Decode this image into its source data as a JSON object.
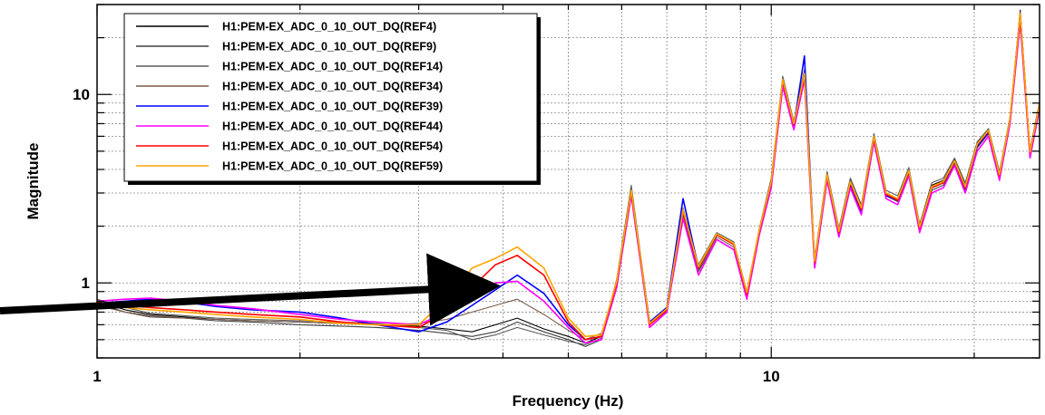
{
  "chart_data": {
    "type": "line",
    "title": "",
    "xlabel": "Frequency (Hz)",
    "ylabel": "Magnitude",
    "xscale": "log",
    "yscale": "log",
    "xlim": [
      1,
      25
    ],
    "ylim": [
      0.4,
      30
    ],
    "grid": true,
    "legend_position": "top-left",
    "x_ticks": [
      {
        "value": 1,
        "label": "1"
      },
      {
        "value": 10,
        "label": "10"
      }
    ],
    "y_ticks": [
      {
        "value": 1,
        "label": "1"
      },
      {
        "value": 10,
        "label": "10"
      }
    ],
    "x": [
      1.0,
      1.1,
      1.2,
      1.35,
      1.5,
      1.7,
      2.0,
      2.3,
      2.6,
      3.0,
      3.3,
      3.6,
      3.9,
      4.2,
      4.6,
      5.0,
      5.3,
      5.6,
      5.9,
      6.2,
      6.6,
      7.0,
      7.4,
      7.8,
      8.3,
      8.8,
      9.2,
      9.6,
      10.0,
      10.4,
      10.8,
      11.2,
      11.6,
      12.1,
      12.6,
      13.1,
      13.6,
      14.2,
      14.8,
      15.4,
      16.0,
      16.6,
      17.3,
      18.0,
      18.7,
      19.4,
      20.2,
      21.0,
      21.8,
      22.6,
      23.4,
      24.2,
      25.0
    ],
    "series": [
      {
        "name": "H1:PEM-EX_ADC_0_10_OUT_DQ(REF4)",
        "color": "#000000",
        "values": [
          0.8,
          0.72,
          0.68,
          0.66,
          0.64,
          0.63,
          0.62,
          0.61,
          0.6,
          0.59,
          0.57,
          0.55,
          0.6,
          0.65,
          0.57,
          0.52,
          0.48,
          0.52,
          1.0,
          3.2,
          0.6,
          0.72,
          2.4,
          1.2,
          1.8,
          1.6,
          0.88,
          1.9,
          3.5,
          12.0,
          7.0,
          13.0,
          1.3,
          3.8,
          1.9,
          3.5,
          2.5,
          6.0,
          3.0,
          2.8,
          4.0,
          2.0,
          3.3,
          3.5,
          4.5,
          3.3,
          5.5,
          6.5,
          3.8,
          7.5,
          28.0,
          5.0,
          9.0
        ]
      },
      {
        "name": "H1:PEM-EX_ADC_0_10_OUT_DQ(REF9)",
        "color": "#404040",
        "values": [
          0.78,
          0.7,
          0.66,
          0.65,
          0.63,
          0.62,
          0.6,
          0.59,
          0.58,
          0.56,
          0.54,
          0.52,
          0.55,
          0.62,
          0.55,
          0.5,
          0.46,
          0.5,
          0.98,
          3.0,
          0.58,
          0.7,
          2.3,
          1.15,
          1.7,
          1.5,
          0.84,
          1.8,
          3.3,
          11.5,
          6.8,
          12.5,
          1.25,
          3.6,
          1.8,
          3.3,
          2.4,
          5.8,
          2.9,
          2.7,
          3.8,
          1.9,
          3.1,
          3.3,
          4.3,
          3.1,
          5.2,
          6.2,
          3.6,
          7.2,
          26.0,
          4.8,
          8.6
        ]
      },
      {
        "name": "H1:PEM-EX_ADC_0_10_OUT_DQ(REF14)",
        "color": "#5a5a5a",
        "values": [
          0.82,
          0.74,
          0.69,
          0.67,
          0.65,
          0.64,
          0.63,
          0.62,
          0.61,
          0.58,
          0.56,
          0.5,
          0.53,
          0.58,
          0.53,
          0.49,
          0.47,
          0.51,
          1.05,
          3.3,
          0.62,
          0.74,
          2.5,
          1.25,
          1.85,
          1.65,
          0.9,
          1.95,
          3.6,
          12.5,
          7.2,
          13.5,
          1.35,
          3.9,
          1.95,
          3.6,
          2.6,
          6.2,
          3.1,
          2.9,
          4.1,
          2.05,
          3.4,
          3.6,
          4.6,
          3.4,
          5.6,
          6.6,
          3.9,
          7.6,
          27.0,
          5.1,
          9.2
        ]
      },
      {
        "name": "H1:PEM-EX_ADC_0_10_OUT_DQ(REF34)",
        "color": "#7a5a48",
        "values": [
          0.76,
          0.7,
          0.67,
          0.65,
          0.64,
          0.63,
          0.62,
          0.61,
          0.6,
          0.61,
          0.64,
          0.7,
          0.76,
          0.82,
          0.68,
          0.56,
          0.5,
          0.54,
          1.0,
          3.1,
          0.6,
          0.71,
          2.35,
          1.18,
          1.75,
          1.55,
          0.86,
          1.85,
          3.4,
          11.8,
          6.9,
          12.8,
          1.28,
          3.7,
          1.85,
          3.4,
          2.45,
          5.9,
          2.95,
          2.75,
          3.9,
          1.95,
          3.2,
          3.4,
          4.4,
          3.2,
          5.4,
          6.4,
          3.7,
          7.4,
          27.5,
          4.9,
          8.8
        ]
      },
      {
        "name": "H1:PEM-EX_ADC_0_10_OUT_DQ(REF39)",
        "color": "#0000ff",
        "values": [
          0.78,
          0.8,
          0.82,
          0.79,
          0.75,
          0.72,
          0.7,
          0.65,
          0.6,
          0.55,
          0.62,
          0.76,
          0.92,
          1.1,
          0.88,
          0.6,
          0.5,
          0.52,
          1.0,
          3.0,
          0.62,
          0.74,
          2.8,
          1.2,
          1.8,
          1.6,
          0.88,
          1.9,
          3.4,
          11.5,
          6.8,
          16.0,
          1.25,
          3.6,
          1.85,
          3.3,
          2.4,
          5.8,
          2.9,
          2.75,
          3.8,
          1.95,
          3.2,
          3.4,
          4.4,
          3.2,
          5.3,
          6.3,
          3.7,
          7.3,
          25.0,
          4.9,
          8.7
        ]
      },
      {
        "name": "H1:PEM-EX_ADC_0_10_OUT_DQ(REF44)",
        "color": "#ff00ff",
        "values": [
          0.8,
          0.82,
          0.83,
          0.8,
          0.76,
          0.73,
          0.68,
          0.64,
          0.62,
          0.6,
          0.7,
          0.88,
          1.0,
          1.02,
          0.8,
          0.58,
          0.48,
          0.5,
          0.95,
          2.9,
          0.58,
          0.7,
          2.2,
          1.1,
          1.7,
          1.5,
          0.82,
          1.8,
          3.2,
          11.0,
          6.5,
          12.0,
          1.2,
          3.5,
          1.75,
          3.2,
          2.3,
          5.6,
          2.8,
          2.6,
          3.7,
          1.85,
          3.0,
          3.2,
          4.2,
          3.0,
          5.0,
          6.0,
          3.5,
          7.0,
          24.0,
          4.6,
          8.4
        ]
      },
      {
        "name": "H1:PEM-EX_ADC_0_10_OUT_DQ(REF54)",
        "color": "#ff0000",
        "values": [
          0.79,
          0.76,
          0.74,
          0.72,
          0.7,
          0.68,
          0.66,
          0.62,
          0.6,
          0.58,
          0.7,
          0.95,
          1.25,
          1.4,
          1.1,
          0.62,
          0.5,
          0.52,
          1.0,
          3.05,
          0.6,
          0.72,
          2.4,
          1.2,
          1.8,
          1.6,
          0.87,
          1.9,
          3.4,
          11.8,
          6.9,
          12.6,
          1.28,
          3.7,
          1.85,
          3.4,
          2.45,
          5.9,
          2.95,
          2.75,
          3.9,
          1.95,
          3.2,
          3.4,
          4.4,
          3.2,
          5.4,
          6.4,
          3.7,
          7.4,
          26.5,
          4.9,
          8.8
        ]
      },
      {
        "name": "H1:PEM-EX_ADC_0_10_OUT_DQ(REF59)",
        "color": "#ffa500",
        "values": [
          0.77,
          0.74,
          0.72,
          0.7,
          0.68,
          0.66,
          0.64,
          0.61,
          0.6,
          0.6,
          0.82,
          1.2,
          1.35,
          1.55,
          1.2,
          0.65,
          0.52,
          0.53,
          1.02,
          3.1,
          0.61,
          0.73,
          2.45,
          1.22,
          1.82,
          1.62,
          0.89,
          1.92,
          3.45,
          12.0,
          7.0,
          12.9,
          1.3,
          3.75,
          1.88,
          3.45,
          2.5,
          6.0,
          3.0,
          2.8,
          3.95,
          1.98,
          3.25,
          3.45,
          4.45,
          3.25,
          5.45,
          6.45,
          3.75,
          7.45,
          26.8,
          4.95,
          8.9
        ]
      }
    ]
  }
}
